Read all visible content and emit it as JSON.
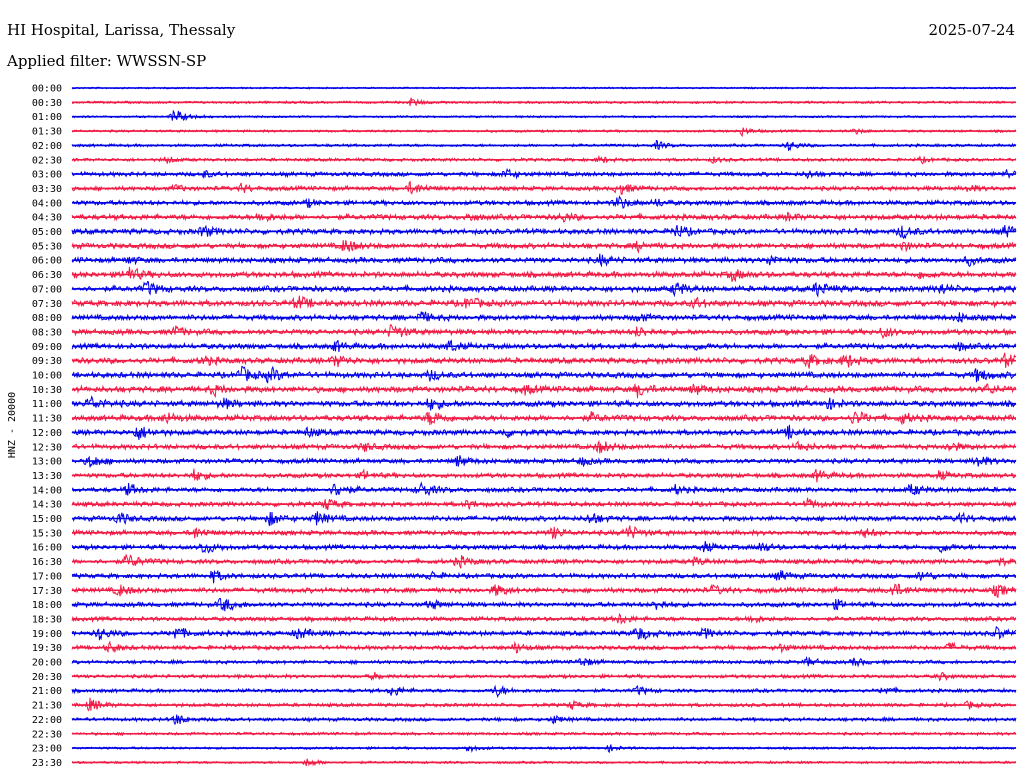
{
  "header": {
    "station": "HI Hospital, Larissa, Thessaly",
    "date": "2025-07-24",
    "filter_label": "Applied filter: WWSSN-SP"
  },
  "chart_data": {
    "type": "line",
    "ylabel": "HNZ - 20000",
    "colors": [
      "#0000e6",
      "#f01a44"
    ],
    "rows": [
      {
        "time": "00:00",
        "level": 0.05,
        "events": []
      },
      {
        "time": "00:30",
        "level": 0.15,
        "events": [
          {
            "t": 0.36,
            "a": 0.6
          }
        ]
      },
      {
        "time": "01:00",
        "level": 0.1,
        "events": [
          {
            "t": 0.11,
            "a": 1.0
          }
        ]
      },
      {
        "time": "01:30",
        "level": 0.15,
        "events": [
          {
            "t": 0.71,
            "a": 0.6
          },
          {
            "t": 0.83,
            "a": 0.4
          }
        ]
      },
      {
        "time": "02:00",
        "level": 0.2,
        "events": [
          {
            "t": 0.62,
            "a": 0.6
          },
          {
            "t": 0.76,
            "a": 0.7
          }
        ]
      },
      {
        "time": "02:30",
        "level": 0.25,
        "events": [
          {
            "t": 0.1,
            "a": 0.5
          },
          {
            "t": 0.56,
            "a": 0.5
          },
          {
            "t": 0.68,
            "a": 0.4
          },
          {
            "t": 0.9,
            "a": 0.4
          }
        ]
      },
      {
        "time": "03:00",
        "level": 0.4,
        "events": [
          {
            "t": 0.14,
            "a": 0.5
          },
          {
            "t": 0.46,
            "a": 0.7
          },
          {
            "t": 0.78,
            "a": 0.5
          },
          {
            "t": 0.99,
            "a": 0.6
          }
        ]
      },
      {
        "time": "03:30",
        "level": 0.4,
        "events": [
          {
            "t": 0.11,
            "a": 0.5
          },
          {
            "t": 0.18,
            "a": 0.6
          },
          {
            "t": 0.36,
            "a": 0.9
          },
          {
            "t": 0.58,
            "a": 0.9
          },
          {
            "t": 0.95,
            "a": 0.5
          }
        ]
      },
      {
        "time": "04:00",
        "level": 0.45,
        "events": [
          {
            "t": 0.25,
            "a": 0.5
          },
          {
            "t": 0.58,
            "a": 0.9
          },
          {
            "t": 0.62,
            "a": 0.5
          }
        ]
      },
      {
        "time": "04:30",
        "level": 0.55,
        "events": [
          {
            "t": 0.2,
            "a": 0.7
          },
          {
            "t": 0.42,
            "a": 0.5
          },
          {
            "t": 0.52,
            "a": 0.6
          },
          {
            "t": 0.76,
            "a": 0.5
          }
        ]
      },
      {
        "time": "05:00",
        "level": 0.55,
        "events": [
          {
            "t": 0.14,
            "a": 0.8
          },
          {
            "t": 0.64,
            "a": 0.9
          },
          {
            "t": 0.88,
            "a": 0.9
          },
          {
            "t": 0.99,
            "a": 0.8
          }
        ]
      },
      {
        "time": "05:30",
        "level": 0.55,
        "events": [
          {
            "t": 0.29,
            "a": 0.9
          },
          {
            "t": 0.6,
            "a": 0.6
          },
          {
            "t": 0.88,
            "a": 0.6
          }
        ]
      },
      {
        "time": "06:00",
        "level": 0.55,
        "events": [
          {
            "t": 0.06,
            "a": 0.5
          },
          {
            "t": 0.56,
            "a": 0.7
          },
          {
            "t": 0.74,
            "a": 0.7
          },
          {
            "t": 0.95,
            "a": 0.6
          }
        ]
      },
      {
        "time": "06:30",
        "level": 0.6,
        "events": [
          {
            "t": 0.06,
            "a": 1.0
          },
          {
            "t": 0.7,
            "a": 0.8
          },
          {
            "t": 0.9,
            "a": 0.5
          }
        ]
      },
      {
        "time": "07:00",
        "level": 0.6,
        "events": [
          {
            "t": 0.08,
            "a": 0.9
          },
          {
            "t": 0.64,
            "a": 0.9
          },
          {
            "t": 0.79,
            "a": 0.9
          },
          {
            "t": 0.92,
            "a": 0.7
          }
        ]
      },
      {
        "time": "07:30",
        "level": 0.65,
        "events": [
          {
            "t": 0.24,
            "a": 0.9
          },
          {
            "t": 0.42,
            "a": 0.8
          },
          {
            "t": 0.66,
            "a": 0.7
          }
        ]
      },
      {
        "time": "08:00",
        "level": 0.55,
        "events": [
          {
            "t": 0.37,
            "a": 0.8
          },
          {
            "t": 0.6,
            "a": 0.6
          },
          {
            "t": 0.94,
            "a": 0.6
          }
        ]
      },
      {
        "time": "08:30",
        "level": 0.55,
        "events": [
          {
            "t": 0.11,
            "a": 0.7
          },
          {
            "t": 0.34,
            "a": 1.0
          },
          {
            "t": 0.6,
            "a": 0.7
          },
          {
            "t": 0.86,
            "a": 0.7
          }
        ]
      },
      {
        "time": "09:00",
        "level": 0.55,
        "events": [
          {
            "t": 0.28,
            "a": 0.7
          },
          {
            "t": 0.4,
            "a": 0.8
          },
          {
            "t": 0.66,
            "a": 0.5
          },
          {
            "t": 0.94,
            "a": 0.5
          }
        ]
      },
      {
        "time": "09:30",
        "level": 0.6,
        "events": [
          {
            "t": 0.14,
            "a": 0.6
          },
          {
            "t": 0.28,
            "a": 0.8
          },
          {
            "t": 0.78,
            "a": 0.9
          },
          {
            "t": 0.82,
            "a": 0.9
          },
          {
            "t": 0.99,
            "a": 0.9
          }
        ]
      },
      {
        "time": "10:00",
        "level": 0.6,
        "events": [
          {
            "t": 0.18,
            "a": 1.0
          },
          {
            "t": 0.21,
            "a": 0.9
          },
          {
            "t": 0.38,
            "a": 0.7
          },
          {
            "t": 0.96,
            "a": 0.9
          }
        ]
      },
      {
        "time": "10:30",
        "level": 0.65,
        "events": [
          {
            "t": 0.15,
            "a": 0.7
          },
          {
            "t": 0.48,
            "a": 0.6
          },
          {
            "t": 0.6,
            "a": 0.9
          },
          {
            "t": 0.66,
            "a": 0.7
          },
          {
            "t": 0.97,
            "a": 0.6
          }
        ]
      },
      {
        "time": "11:00",
        "level": 0.6,
        "events": [
          {
            "t": 0.02,
            "a": 0.9
          },
          {
            "t": 0.16,
            "a": 0.7
          },
          {
            "t": 0.38,
            "a": 0.8
          },
          {
            "t": 0.8,
            "a": 0.8
          }
        ]
      },
      {
        "time": "11:30",
        "level": 0.6,
        "events": [
          {
            "t": 0.1,
            "a": 0.8
          },
          {
            "t": 0.38,
            "a": 1.0
          },
          {
            "t": 0.55,
            "a": 0.6
          },
          {
            "t": 0.83,
            "a": 0.9
          },
          {
            "t": 0.88,
            "a": 0.7
          }
        ]
      },
      {
        "time": "12:00",
        "level": 0.55,
        "events": [
          {
            "t": 0.07,
            "a": 1.0
          },
          {
            "t": 0.25,
            "a": 0.6
          },
          {
            "t": 0.46,
            "a": 0.6
          },
          {
            "t": 0.76,
            "a": 0.8
          }
        ]
      },
      {
        "time": "12:30",
        "level": 0.5,
        "events": [
          {
            "t": 0.31,
            "a": 0.6
          },
          {
            "t": 0.56,
            "a": 0.9
          },
          {
            "t": 0.77,
            "a": 0.7
          },
          {
            "t": 0.93,
            "a": 0.7
          }
        ]
      },
      {
        "time": "13:00",
        "level": 0.45,
        "events": [
          {
            "t": 0.02,
            "a": 0.9
          },
          {
            "t": 0.41,
            "a": 0.8
          },
          {
            "t": 0.54,
            "a": 0.6
          },
          {
            "t": 0.96,
            "a": 0.8
          }
        ]
      },
      {
        "time": "13:30",
        "level": 0.45,
        "events": [
          {
            "t": 0.13,
            "a": 0.8
          },
          {
            "t": 0.31,
            "a": 0.6
          },
          {
            "t": 0.79,
            "a": 0.8
          },
          {
            "t": 0.92,
            "a": 0.6
          }
        ]
      },
      {
        "time": "14:00",
        "level": 0.45,
        "events": [
          {
            "t": 0.06,
            "a": 0.8
          },
          {
            "t": 0.28,
            "a": 1.0
          },
          {
            "t": 0.37,
            "a": 1.0
          },
          {
            "t": 0.64,
            "a": 0.6
          },
          {
            "t": 0.89,
            "a": 0.8
          }
        ]
      },
      {
        "time": "14:30",
        "level": 0.45,
        "events": [
          {
            "t": 0.27,
            "a": 0.8
          },
          {
            "t": 0.42,
            "a": 0.6
          },
          {
            "t": 0.78,
            "a": 0.7
          }
        ]
      },
      {
        "time": "15:00",
        "level": 0.5,
        "events": [
          {
            "t": 0.05,
            "a": 0.8
          },
          {
            "t": 0.21,
            "a": 0.9
          },
          {
            "t": 0.26,
            "a": 0.9
          },
          {
            "t": 0.55,
            "a": 0.8
          },
          {
            "t": 0.94,
            "a": 0.7
          }
        ]
      },
      {
        "time": "15:30",
        "level": 0.45,
        "events": [
          {
            "t": 0.13,
            "a": 0.8
          },
          {
            "t": 0.51,
            "a": 0.8
          },
          {
            "t": 0.59,
            "a": 1.0
          },
          {
            "t": 0.84,
            "a": 0.6
          }
        ]
      },
      {
        "time": "16:00",
        "level": 0.45,
        "events": [
          {
            "t": 0.14,
            "a": 0.9
          },
          {
            "t": 0.67,
            "a": 0.7
          },
          {
            "t": 0.73,
            "a": 0.7
          },
          {
            "t": 0.92,
            "a": 0.7
          }
        ]
      },
      {
        "time": "16:30",
        "level": 0.45,
        "events": [
          {
            "t": 0.06,
            "a": 1.0
          },
          {
            "t": 0.41,
            "a": 0.8
          },
          {
            "t": 0.66,
            "a": 0.6
          },
          {
            "t": 0.98,
            "a": 0.6
          }
        ]
      },
      {
        "time": "17:00",
        "level": 0.45,
        "events": [
          {
            "t": 0.15,
            "a": 0.8
          },
          {
            "t": 0.38,
            "a": 0.6
          },
          {
            "t": 0.75,
            "a": 0.7
          },
          {
            "t": 0.9,
            "a": 0.7
          }
        ]
      },
      {
        "time": "17:30",
        "level": 0.5,
        "events": [
          {
            "t": 0.05,
            "a": 0.8
          },
          {
            "t": 0.45,
            "a": 0.8
          },
          {
            "t": 0.68,
            "a": 0.6
          },
          {
            "t": 0.87,
            "a": 1.0
          },
          {
            "t": 0.98,
            "a": 0.8
          }
        ]
      },
      {
        "time": "18:00",
        "level": 0.45,
        "events": [
          {
            "t": 0.16,
            "a": 1.0
          },
          {
            "t": 0.38,
            "a": 0.7
          },
          {
            "t": 0.62,
            "a": 0.7
          },
          {
            "t": 0.81,
            "a": 0.6
          }
        ]
      },
      {
        "time": "18:30",
        "level": 0.4,
        "events": [
          {
            "t": 0.58,
            "a": 0.7
          },
          {
            "t": 0.72,
            "a": 0.6
          }
        ]
      },
      {
        "time": "19:00",
        "level": 0.45,
        "events": [
          {
            "t": 0.03,
            "a": 0.8
          },
          {
            "t": 0.11,
            "a": 0.9
          },
          {
            "t": 0.24,
            "a": 0.8
          },
          {
            "t": 0.6,
            "a": 1.0
          },
          {
            "t": 0.67,
            "a": 0.7
          },
          {
            "t": 0.98,
            "a": 0.8
          }
        ]
      },
      {
        "time": "19:30",
        "level": 0.4,
        "events": [
          {
            "t": 0.04,
            "a": 0.7
          },
          {
            "t": 0.47,
            "a": 0.7
          },
          {
            "t": 0.75,
            "a": 0.6
          },
          {
            "t": 0.93,
            "a": 0.6
          }
        ]
      },
      {
        "time": "20:00",
        "level": 0.3,
        "events": [
          {
            "t": 0.54,
            "a": 0.7
          },
          {
            "t": 0.78,
            "a": 0.6
          },
          {
            "t": 0.83,
            "a": 0.6
          }
        ]
      },
      {
        "time": "20:30",
        "level": 0.3,
        "events": [
          {
            "t": 0.32,
            "a": 0.5
          },
          {
            "t": 0.92,
            "a": 0.5
          }
        ]
      },
      {
        "time": "21:00",
        "level": 0.3,
        "events": [
          {
            "t": 0.34,
            "a": 0.8
          },
          {
            "t": 0.45,
            "a": 0.8
          },
          {
            "t": 0.6,
            "a": 0.6
          },
          {
            "t": 0.86,
            "a": 0.6
          }
        ]
      },
      {
        "time": "21:30",
        "level": 0.3,
        "events": [
          {
            "t": 0.02,
            "a": 0.9
          },
          {
            "t": 0.53,
            "a": 0.6
          },
          {
            "t": 0.95,
            "a": 0.5
          }
        ]
      },
      {
        "time": "22:00",
        "level": 0.3,
        "events": [
          {
            "t": 0.11,
            "a": 0.8
          },
          {
            "t": 0.51,
            "a": 0.6
          }
        ]
      },
      {
        "time": "22:30",
        "level": 0.2,
        "events": []
      },
      {
        "time": "23:00",
        "level": 0.15,
        "events": [
          {
            "t": 0.42,
            "a": 0.5
          },
          {
            "t": 0.57,
            "a": 0.5
          }
        ]
      },
      {
        "time": "23:30",
        "level": 0.15,
        "events": [
          {
            "t": 0.25,
            "a": 0.6
          }
        ]
      }
    ]
  }
}
